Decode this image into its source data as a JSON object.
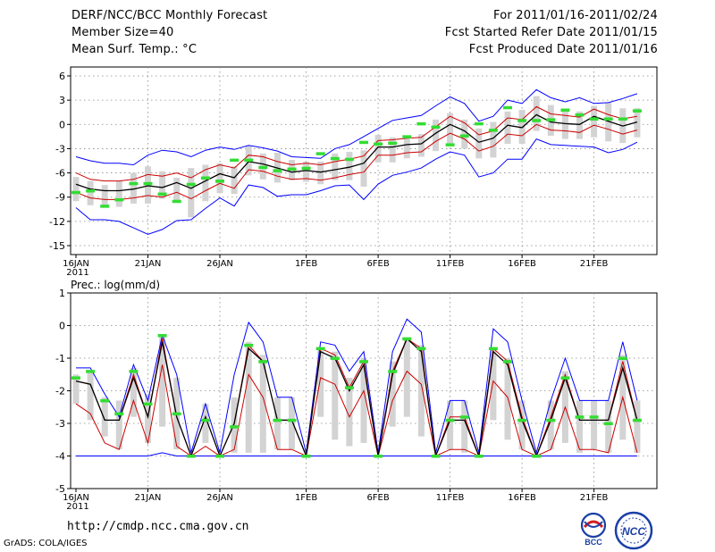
{
  "header": {
    "title": "DERF/NCC/BCC Monthly Forecast",
    "member_size": "Member Size=40",
    "variable": "Mean Surf. Temp.: °C",
    "period": "For 2011/01/16-2011/02/24",
    "started": "Fcst Started Refer Date 2011/01/15",
    "produced": "Fcst Produced Date 2011/01/16"
  },
  "footer": {
    "url": "http://cmdp.ncc.cma.gov.cn",
    "credit": "GrADS: COLA/IGES"
  },
  "logos": {
    "bcc": "BCC",
    "ncc": "NCC"
  },
  "colors": {
    "ensemble_max_min": "#0000ff",
    "percentile_band": "#cc0000",
    "ensemble_mean": "#000000",
    "marker": "#33dd33",
    "box": "#d3d3d3",
    "grid": "#888888"
  },
  "chart_data": [
    {
      "type": "line",
      "title": "",
      "ylabel": "",
      "ylim": [
        -16,
        7
      ],
      "yticks": [
        6,
        3,
        0,
        -3,
        -6,
        -9,
        -12,
        -15
      ],
      "xtick_labels": [
        "16JAN",
        "21JAN",
        "26JAN",
        "1FEB",
        "6FEB",
        "11FEB",
        "16FEB",
        "21FEB"
      ],
      "xtick_index": [
        0,
        5,
        10,
        16,
        21,
        26,
        31,
        36
      ],
      "x_year_label": "2011",
      "days": 40,
      "series": [
        {
          "name": "max",
          "values": [
            -4,
            -4.5,
            -4.8,
            -4.8,
            -5,
            -3.8,
            -3.2,
            -3.4,
            -4,
            -3.2,
            -2.8,
            -3.1,
            -2.6,
            -2.9,
            -3.3,
            -4,
            -4.1,
            -4.2,
            -3,
            -2.5,
            -1.5,
            -0.5,
            0.5,
            0.8,
            1.1,
            2.3,
            3.4,
            2.6,
            0.4,
            1,
            3,
            2.6,
            4.3,
            3.3,
            2.8,
            3.3,
            2.6,
            2.7,
            3.2,
            3.8
          ]
        },
        {
          "name": "upper",
          "values": [
            -6,
            -6.8,
            -7,
            -7,
            -6.8,
            -6.2,
            -6.4,
            -6,
            -6.6,
            -5.6,
            -5,
            -5.4,
            -3.8,
            -4,
            -4.6,
            -5,
            -4.8,
            -5,
            -4.6,
            -4.3,
            -3.9,
            -2,
            -1.9,
            -1.7,
            -1.6,
            -0.3,
            1,
            0.2,
            -1.3,
            -0.8,
            0.8,
            0.6,
            2.2,
            1.3,
            1.1,
            0.9,
            1.9,
            1.2,
            0.7,
            1
          ]
        },
        {
          "name": "mean",
          "values": [
            -7.4,
            -8,
            -8.2,
            -8.2,
            -8,
            -7.6,
            -7.8,
            -7.2,
            -7.9,
            -7,
            -6.1,
            -6.6,
            -4.6,
            -4.9,
            -5.4,
            -5.9,
            -5.7,
            -5.9,
            -5.6,
            -5.3,
            -4.8,
            -2.8,
            -2.8,
            -2.5,
            -2.4,
            -1.1,
            0,
            -0.8,
            -2.2,
            -1.7,
            -0.1,
            -0.4,
            1.2,
            0.3,
            0.1,
            0,
            1,
            0.4,
            -0.2,
            0.3
          ]
        },
        {
          "name": "lower",
          "values": [
            -8.4,
            -9.1,
            -9.3,
            -9.3,
            -9.1,
            -8.8,
            -9,
            -8.4,
            -9.2,
            -8.2,
            -7.3,
            -7.9,
            -5.6,
            -5.8,
            -6.4,
            -6.8,
            -6.7,
            -6.9,
            -6.6,
            -6.2,
            -5.9,
            -3.8,
            -3.8,
            -3.5,
            -3.4,
            -2.1,
            -1.1,
            -1.8,
            -3.3,
            -2.7,
            -1.2,
            -1.4,
            0,
            -0.7,
            -0.8,
            -1,
            -0.1,
            -0.6,
            -1.2,
            -0.7
          ]
        },
        {
          "name": "min",
          "values": [
            -10.3,
            -11.8,
            -11.8,
            -12,
            -12.8,
            -13.6,
            -13,
            -11.9,
            -11.8,
            -10.4,
            -9.1,
            -10.1,
            -7.5,
            -7.8,
            -8.9,
            -8.7,
            -8.7,
            -8.2,
            -7.6,
            -7.5,
            -9.3,
            -7.4,
            -6.3,
            -5.9,
            -5.4,
            -4.3,
            -3.4,
            -3.8,
            -6.5,
            -6,
            -4.3,
            -4.3,
            -1.8,
            -2.5,
            -2.6,
            -2.7,
            -2.8,
            -3.5,
            -3.1,
            -2.2
          ]
        },
        {
          "name": "box_high",
          "values": [
            -6.5,
            -7,
            -7.5,
            -7,
            -6,
            -5.2,
            -5.8,
            -6.6,
            -5.4,
            -5,
            -4.8,
            -5.2,
            -2.6,
            -3.6,
            -3.5,
            -4.4,
            -4.6,
            -4.6,
            -3.6,
            -3.4,
            -3.2,
            -1.3,
            -1.6,
            -1.4,
            -1.2,
            0.6,
            1.4,
            0.6,
            -0.5,
            0.3,
            1.6,
            1.8,
            3.5,
            2.4,
            1.9,
            1.6,
            2.3,
            2.7,
            2,
            2
          ]
        },
        {
          "name": "box_low",
          "values": [
            -9.5,
            -10,
            -10.2,
            -10.2,
            -9.8,
            -9.8,
            -9.2,
            -9.6,
            -11.5,
            -9.5,
            -8.5,
            -8.6,
            -6.3,
            -6.8,
            -7.2,
            -6.9,
            -7.1,
            -7.4,
            -6.9,
            -6.9,
            -7.7,
            -4.7,
            -4.7,
            -4.2,
            -4,
            -3.3,
            -2.6,
            -3,
            -4.2,
            -4.1,
            -2.4,
            -2.4,
            -0.8,
            -1.4,
            -1.8,
            -1.8,
            -1.6,
            -2.1,
            -2.3,
            -1.6
          ]
        },
        {
          "name": "marker",
          "values": [
            -8.4,
            -8.2,
            -10.1,
            -9.3,
            -7.3,
            -7.3,
            -8.6,
            -9.5,
            -7.4,
            -6.6,
            -7,
            -4.4,
            -4.4,
            -5.3,
            -5.7,
            -5.5,
            -5.4,
            -3.6,
            -4.2,
            -4.3,
            -2.2,
            -2.4,
            -2.3,
            -1.5,
            0.1,
            -0.3,
            -2.5,
            -1.4,
            0.1,
            -0.7,
            2.1,
            0.5,
            0.5,
            0.6,
            1.8,
            1.2,
            0.7,
            0.7,
            0.7,
            1.7
          ]
        }
      ]
    },
    {
      "type": "line",
      "title": "Prec.: log(mm/d)",
      "ylabel": "",
      "ylim": [
        -5,
        1
      ],
      "yticks": [
        1,
        0,
        -1,
        -2,
        -3,
        -4,
        -5
      ],
      "xtick_labels": [
        "16JAN",
        "21JAN",
        "26JAN",
        "1FEB",
        "6FEB",
        "11FEB",
        "16FEB",
        "21FEB"
      ],
      "xtick_index": [
        0,
        5,
        10,
        16,
        21,
        26,
        31,
        36
      ],
      "x_year_label": "2011",
      "days": 40,
      "series": [
        {
          "name": "max",
          "values": [
            -1.3,
            -1.3,
            -2.1,
            -2.8,
            -1.2,
            -2.3,
            -0.3,
            -1.5,
            -3.9,
            -2.4,
            -3.9,
            -1.5,
            0.1,
            -0.5,
            -2.2,
            -2.2,
            -3.9,
            -0.5,
            -0.6,
            -1.4,
            -0.8,
            -3.9,
            -0.8,
            0.2,
            -0.2,
            -3.9,
            -2.3,
            -2.3,
            -3.9,
            -0.1,
            -0.5,
            -2.3,
            -3.9,
            -2.3,
            -1,
            -2.3,
            -2.3,
            -2.3,
            -0.5,
            -2.3
          ]
        },
        {
          "name": "upper",
          "values": [
            -1.7,
            -1.8,
            -2.9,
            -2.9,
            -1.5,
            -2.8,
            -0.4,
            -2.8,
            -4,
            -2.8,
            -4,
            -3,
            -0.6,
            -1.1,
            -2.9,
            -2.9,
            -4,
            -0.7,
            -0.9,
            -1.9,
            -1.1,
            -4,
            -1.4,
            -0.4,
            -0.7,
            -4,
            -2.8,
            -2.8,
            -4,
            -0.7,
            -1.1,
            -2.8,
            -4,
            -2.8,
            -1.5,
            -2.9,
            -2.9,
            -2.9,
            -1.1,
            -2.9
          ]
        },
        {
          "name": "mean",
          "values": [
            -1.7,
            -1.8,
            -2.9,
            -2.9,
            -1.6,
            -2.8,
            -0.5,
            -2.8,
            -4,
            -2.8,
            -4,
            -3,
            -0.7,
            -1.1,
            -2.9,
            -2.9,
            -4,
            -0.8,
            -1,
            -2,
            -1.2,
            -4,
            -1.5,
            -0.4,
            -0.8,
            -4,
            -2.9,
            -2.9,
            -4,
            -0.8,
            -1.2,
            -2.9,
            -4,
            -2.9,
            -1.6,
            -2.9,
            -2.9,
            -2.9,
            -1.3,
            -2.9
          ]
        },
        {
          "name": "lower",
          "values": [
            -2.4,
            -2.7,
            -3.6,
            -3.8,
            -2.3,
            -3.6,
            -1.2,
            -3.7,
            -4,
            -3.7,
            -4,
            -3.8,
            -1.5,
            -2.2,
            -3.8,
            -3.8,
            -4,
            -1.6,
            -1.8,
            -2.8,
            -2,
            -4,
            -2.3,
            -1.4,
            -1.8,
            -4,
            -3.8,
            -3.8,
            -4,
            -1.7,
            -2.2,
            -3.8,
            -4,
            -3.8,
            -2.5,
            -3.8,
            -3.8,
            -3.9,
            -2.2,
            -3.9
          ]
        },
        {
          "name": "min",
          "values": [
            -4,
            -4,
            -4,
            -4,
            -4,
            -4,
            -3.9,
            -4,
            -4,
            -4,
            -4,
            -4,
            -4,
            -4,
            -4,
            -4,
            -4,
            -4,
            -4,
            -4,
            -4,
            -4,
            -4,
            -4,
            -4,
            -4,
            -4,
            -4,
            -4,
            -4,
            -4,
            -4,
            -4,
            -4,
            -4,
            -4,
            -4,
            -4,
            -4,
            -4
          ]
        },
        {
          "name": "box_high",
          "values": [
            -1.5,
            -1.4,
            -2.2,
            -2.3,
            -1.3,
            -2.1,
            -0.3,
            -1.6,
            -4,
            -2.4,
            -4,
            -2.2,
            -0.5,
            -0.9,
            -2.2,
            -2.2,
            -4,
            -0.7,
            -0.8,
            -1.6,
            -1,
            -4,
            -1.1,
            -0.4,
            -0.6,
            -4,
            -2.3,
            -2.3,
            -4,
            -0.7,
            -1,
            -2.3,
            -4,
            -2.3,
            -1.4,
            -2.3,
            -2.3,
            -2.3,
            -0.9,
            -2.3
          ]
        },
        {
          "name": "box_low",
          "values": [
            -2.4,
            -2.9,
            -3.4,
            -3.8,
            -2.8,
            -3.6,
            -3.1,
            -3.8,
            -4,
            -3.6,
            -4,
            -3.9,
            -3.9,
            -3.9,
            -3.8,
            -3.8,
            -4,
            -2.8,
            -3.5,
            -3.7,
            -3.6,
            -4,
            -3.1,
            -2.8,
            -3.4,
            -4,
            -3.8,
            -3.9,
            -4,
            -2.9,
            -3.5,
            -3.8,
            -4,
            -3.8,
            -3.6,
            -3.9,
            -3.8,
            -3.9,
            -3.5,
            -3.9
          ]
        },
        {
          "name": "marker",
          "values": [
            -1.6,
            -1.4,
            -2.3,
            -2.7,
            -1.4,
            -2.4,
            -0.3,
            -2.7,
            -4,
            -2.9,
            -4,
            -3.1,
            -0.6,
            -1.1,
            -2.9,
            -2.9,
            -4,
            -0.7,
            -1,
            -1.9,
            -1.1,
            -4,
            -1.4,
            -0.4,
            -0.7,
            -4,
            -2.9,
            -2.8,
            -4,
            -0.7,
            -1.1,
            -2.9,
            -4,
            -2.9,
            -1.6,
            -2.8,
            -2.8,
            -3,
            -1,
            -2.9
          ]
        }
      ]
    }
  ]
}
